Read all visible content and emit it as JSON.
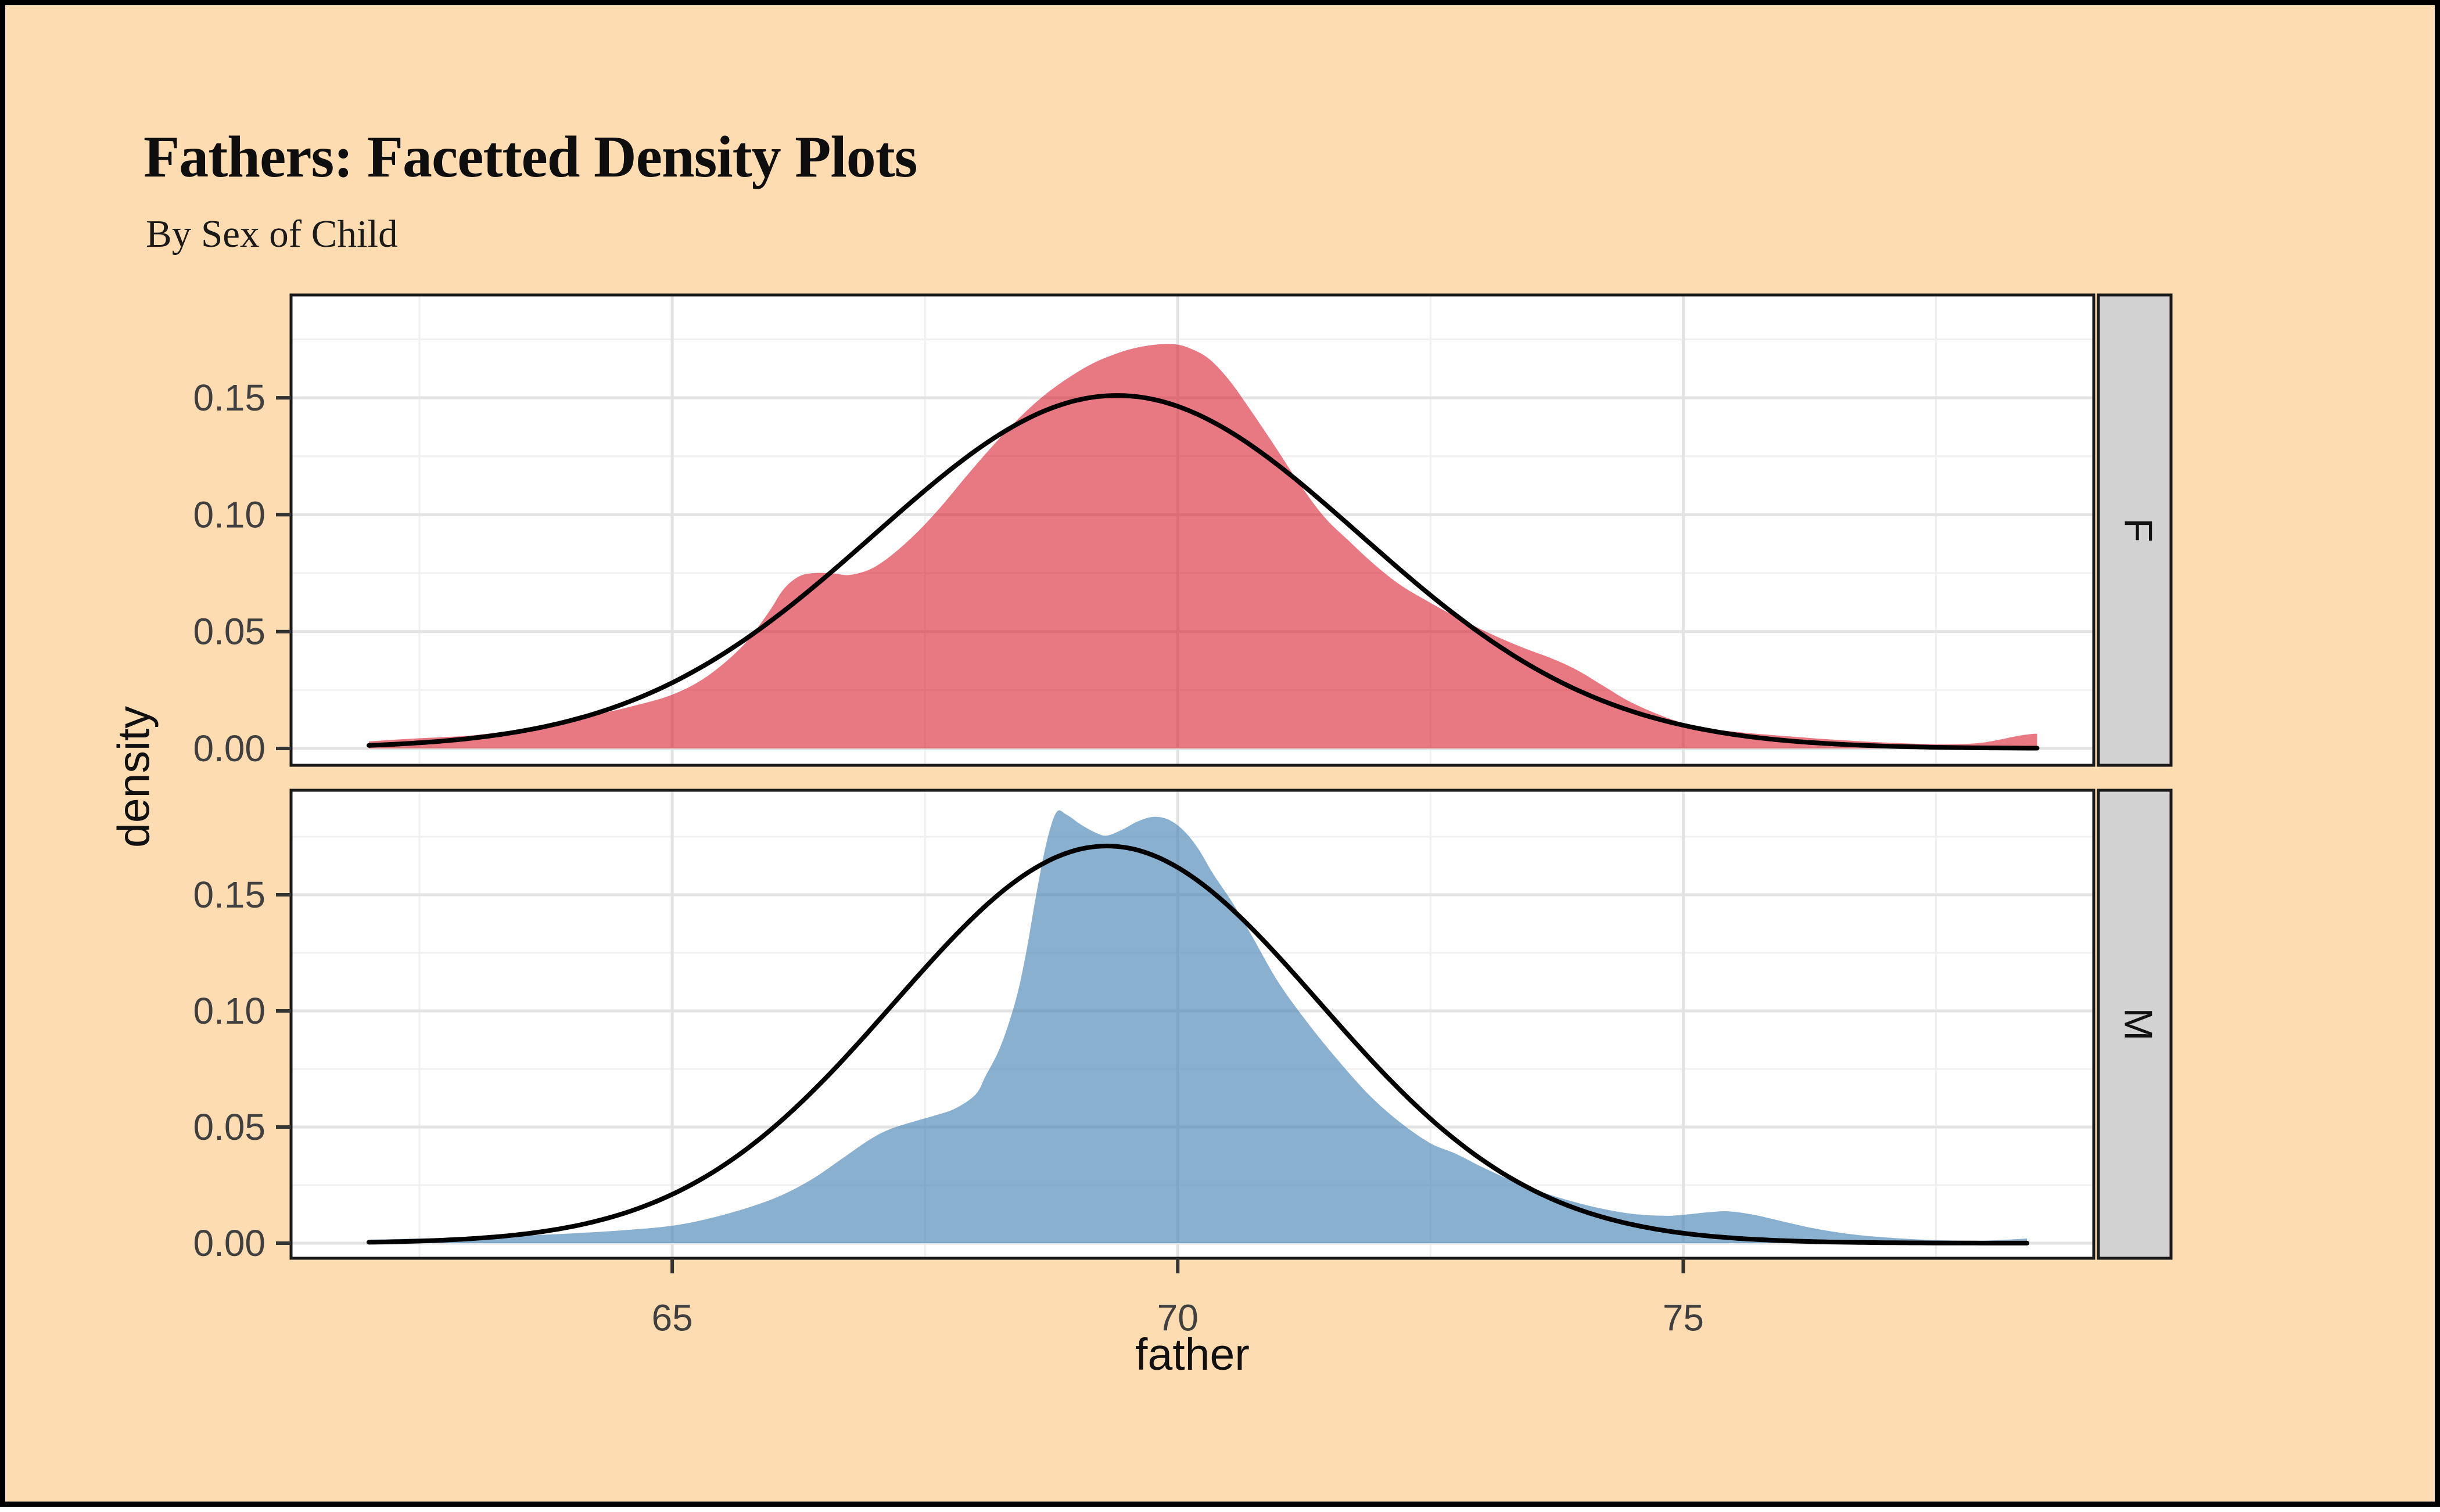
{
  "page": {
    "background_color": "#FDDCB2",
    "frame_color": "#000000",
    "panel_background": "#FFFFFF",
    "panel_border_color": "#1a1a1a",
    "grid_major_color": "#E3E3E3",
    "grid_minor_color": "#F0F0F0",
    "tick_color": "#333333",
    "tick_label_color": "#404040",
    "strip_background": "#D2D2D2",
    "strip_text_color": "#111111"
  },
  "header": {
    "title": "Fathers: Facetted Density Plots",
    "subtitle": "By Sex of Child"
  },
  "chart_data": {
    "type": "area",
    "kind": "faceted-density-with-normal-overlay",
    "title": "Fathers: Facetted Density Plots",
    "subtitle": "By Sex of Child",
    "xlabel": "father",
    "ylabel": "density",
    "legend_position": "none",
    "grid": "on",
    "xlim": [
      61.23,
      79.06
    ],
    "ylim": [
      -0.007,
      0.194
    ],
    "x_ticks": [
      65,
      70,
      75
    ],
    "x_tick_labels": [
      "65",
      "70",
      "75"
    ],
    "x_minor_ticks": [
      62.5,
      67.5,
      72.5,
      77.5
    ],
    "y_ticks": [
      0,
      0.05,
      0.1,
      0.15
    ],
    "y_tick_labels": [
      "0.00",
      "0.05",
      "0.10",
      "0.15"
    ],
    "y_minor_ticks": [
      0.025,
      0.075,
      0.125,
      0.175
    ],
    "facets": [
      {
        "label": "F",
        "fill_color": "rgba(218,38,55,0.62)",
        "line_color": "#000000",
        "density_points": [
          [
            62.0,
            0.003
          ],
          [
            62.35,
            0.004
          ],
          [
            62.7,
            0.0048
          ],
          [
            63.0,
            0.0055
          ],
          [
            63.4,
            0.0075
          ],
          [
            63.8,
            0.01
          ],
          [
            64.2,
            0.014
          ],
          [
            64.6,
            0.018
          ],
          [
            65.0,
            0.023
          ],
          [
            65.35,
            0.031
          ],
          [
            65.7,
            0.044
          ],
          [
            65.95,
            0.058
          ],
          [
            66.1,
            0.068
          ],
          [
            66.25,
            0.0735
          ],
          [
            66.4,
            0.075
          ],
          [
            66.6,
            0.0748
          ],
          [
            66.75,
            0.0742
          ],
          [
            66.95,
            0.0765
          ],
          [
            67.15,
            0.082
          ],
          [
            67.4,
            0.0915
          ],
          [
            67.65,
            0.103
          ],
          [
            67.9,
            0.116
          ],
          [
            68.15,
            0.1285
          ],
          [
            68.4,
            0.14
          ],
          [
            68.65,
            0.15
          ],
          [
            68.9,
            0.158
          ],
          [
            69.15,
            0.1645
          ],
          [
            69.4,
            0.169
          ],
          [
            69.6,
            0.1715
          ],
          [
            69.8,
            0.1728
          ],
          [
            69.95,
            0.173
          ],
          [
            70.1,
            0.1715
          ],
          [
            70.3,
            0.167
          ],
          [
            70.5,
            0.158
          ],
          [
            70.7,
            0.146
          ],
          [
            70.95,
            0.13
          ],
          [
            71.2,
            0.1135
          ],
          [
            71.45,
            0.099
          ],
          [
            71.7,
            0.0885
          ],
          [
            71.95,
            0.0785
          ],
          [
            72.2,
            0.07
          ],
          [
            72.45,
            0.0635
          ],
          [
            72.7,
            0.0575
          ],
          [
            72.95,
            0.052
          ],
          [
            73.2,
            0.047
          ],
          [
            73.45,
            0.0425
          ],
          [
            73.7,
            0.0385
          ],
          [
            73.95,
            0.0335
          ],
          [
            74.2,
            0.027
          ],
          [
            74.45,
            0.0205
          ],
          [
            74.7,
            0.0155
          ],
          [
            74.95,
            0.0115
          ],
          [
            75.2,
            0.0088
          ],
          [
            75.5,
            0.0072
          ],
          [
            75.8,
            0.006
          ],
          [
            76.1,
            0.005
          ],
          [
            76.4,
            0.004
          ],
          [
            76.7,
            0.0032
          ],
          [
            77.0,
            0.0025
          ],
          [
            77.3,
            0.002
          ],
          [
            77.6,
            0.0018
          ],
          [
            77.9,
            0.0022
          ],
          [
            78.1,
            0.0035
          ],
          [
            78.3,
            0.0053
          ],
          [
            78.45,
            0.0062
          ],
          [
            78.5,
            0.0063
          ]
        ],
        "normal_curve": {
          "mean": 69.4,
          "sd": 2.4,
          "peak": 0.151,
          "range": [
            62.0,
            78.5
          ]
        }
      },
      {
        "label": "M",
        "fill_color": "rgba(70,130,180,0.63)",
        "line_color": "#000000",
        "density_points": [
          [
            62.0,
            0.0015
          ],
          [
            62.5,
            0.002
          ],
          [
            63.0,
            0.0025
          ],
          [
            63.5,
            0.0032
          ],
          [
            64.0,
            0.0042
          ],
          [
            64.5,
            0.0055
          ],
          [
            65.0,
            0.0075
          ],
          [
            65.4,
            0.011
          ],
          [
            65.8,
            0.016
          ],
          [
            66.1,
            0.021
          ],
          [
            66.4,
            0.028
          ],
          [
            66.7,
            0.037
          ],
          [
            66.95,
            0.0445
          ],
          [
            67.15,
            0.049
          ],
          [
            67.4,
            0.0525
          ],
          [
            67.6,
            0.055
          ],
          [
            67.8,
            0.058
          ],
          [
            68.0,
            0.064
          ],
          [
            68.1,
            0.072
          ],
          [
            68.25,
            0.085
          ],
          [
            68.4,
            0.105
          ],
          [
            68.5,
            0.125
          ],
          [
            68.6,
            0.15
          ],
          [
            68.7,
            0.172
          ],
          [
            68.8,
            0.1855
          ],
          [
            68.9,
            0.1845
          ],
          [
            69.05,
            0.18
          ],
          [
            69.2,
            0.1765
          ],
          [
            69.3,
            0.1755
          ],
          [
            69.45,
            0.178
          ],
          [
            69.6,
            0.1815
          ],
          [
            69.75,
            0.1835
          ],
          [
            69.9,
            0.1825
          ],
          [
            70.05,
            0.178
          ],
          [
            70.2,
            0.17
          ],
          [
            70.35,
            0.159
          ],
          [
            70.55,
            0.146
          ],
          [
            70.75,
            0.131
          ],
          [
            71.0,
            0.112
          ],
          [
            71.3,
            0.094
          ],
          [
            71.6,
            0.078
          ],
          [
            71.9,
            0.0635
          ],
          [
            72.2,
            0.052
          ],
          [
            72.5,
            0.043
          ],
          [
            72.75,
            0.0385
          ],
          [
            73.0,
            0.033
          ],
          [
            73.3,
            0.027
          ],
          [
            73.6,
            0.022
          ],
          [
            73.9,
            0.018
          ],
          [
            74.2,
            0.0148
          ],
          [
            74.5,
            0.0126
          ],
          [
            74.8,
            0.0118
          ],
          [
            75.0,
            0.0122
          ],
          [
            75.25,
            0.0133
          ],
          [
            75.45,
            0.0137
          ],
          [
            75.7,
            0.0122
          ],
          [
            76.0,
            0.0092
          ],
          [
            76.3,
            0.0063
          ],
          [
            76.6,
            0.0042
          ],
          [
            76.9,
            0.0028
          ],
          [
            77.2,
            0.0019
          ],
          [
            77.5,
            0.0013
          ],
          [
            77.9,
            0.001
          ],
          [
            78.2,
            0.0015
          ],
          [
            78.4,
            0.002
          ]
        ],
        "normal_curve": {
          "mean": 69.3,
          "sd": 2.1,
          "peak": 0.171,
          "range": [
            62.0,
            78.4
          ]
        }
      }
    ]
  }
}
